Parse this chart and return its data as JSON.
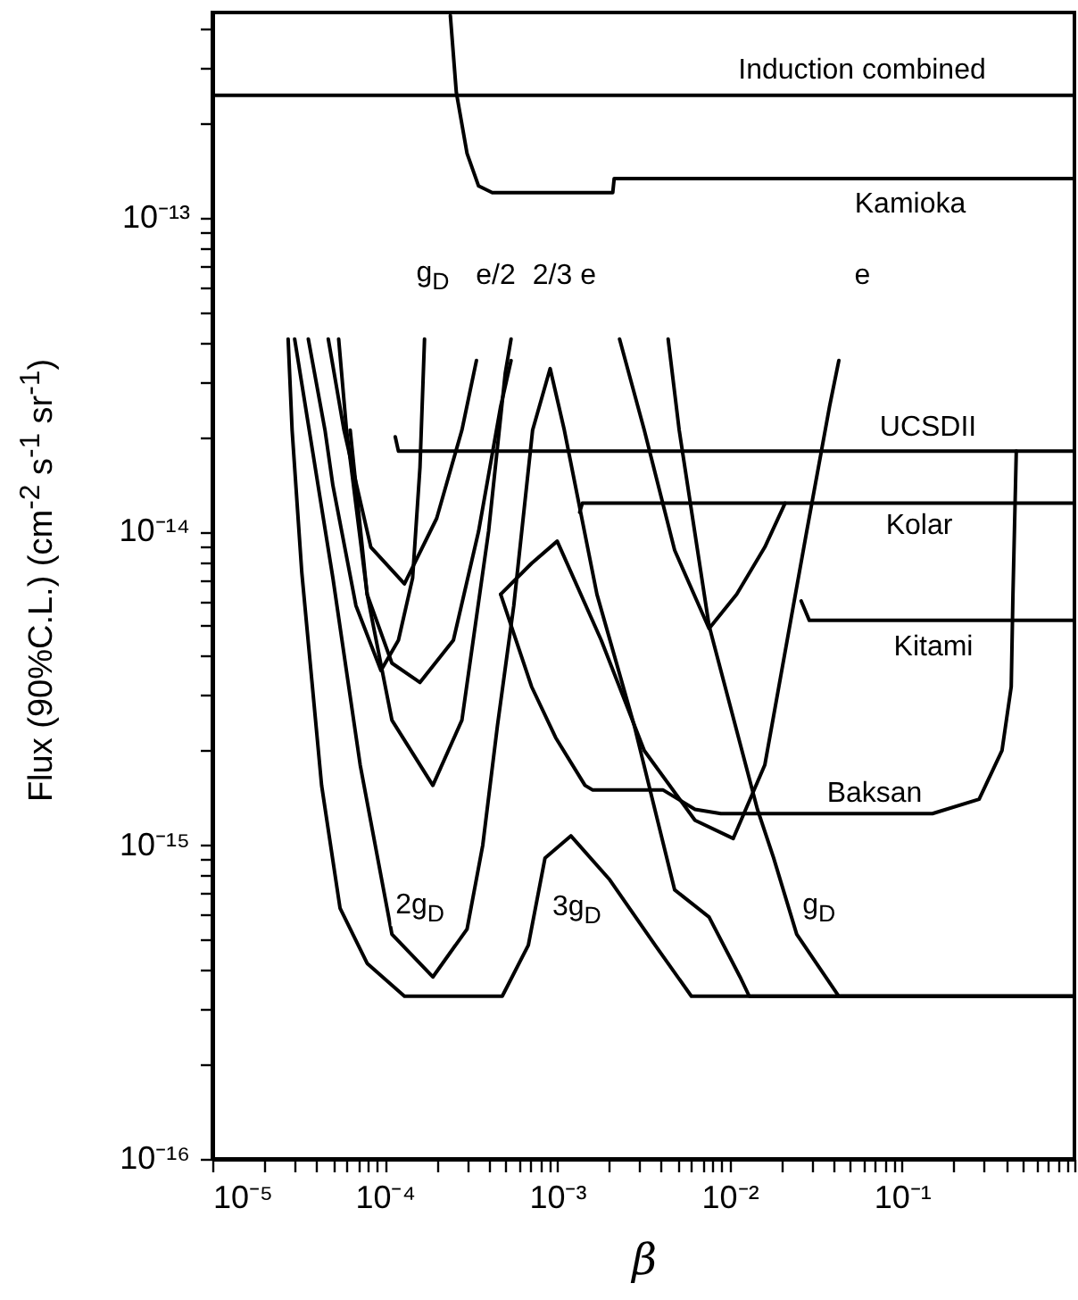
{
  "chart_data": {
    "type": "line",
    "xlabel": "β",
    "ylabel": "Flux (90%C.L.)   (cm$^{-2}$ s$^{-1}$ sr$^{-1}$)",
    "log": "xy",
    "xlim": [
      1e-05,
      1
    ],
    "ylim": [
      1e-16,
      4.5e-13
    ],
    "xticks": [
      {
        "value": 1e-05,
        "label": "10⁻⁵"
      },
      {
        "value": 2e-05,
        "label": null
      },
      {
        "value": 3e-05,
        "label": null
      },
      {
        "value": 4e-05,
        "label": null
      },
      {
        "value": 5e-05,
        "label": null
      },
      {
        "value": 6e-05,
        "label": null
      },
      {
        "value": 7e-05,
        "label": null
      },
      {
        "value": 8e-05,
        "label": null
      },
      {
        "value": 9e-05,
        "label": null
      },
      {
        "value": 0.0001,
        "label": "10⁻⁴"
      },
      {
        "value": 0.0002,
        "label": null
      },
      {
        "value": 0.0003,
        "label": null
      },
      {
        "value": 0.0004,
        "label": null
      },
      {
        "value": 0.0005,
        "label": null
      },
      {
        "value": 0.0006,
        "label": null
      },
      {
        "value": 0.0007,
        "label": null
      },
      {
        "value": 0.0008,
        "label": null
      },
      {
        "value": 0.0009,
        "label": null
      },
      {
        "value": 0.001,
        "label": "10⁻³"
      },
      {
        "value": 0.002,
        "label": null
      },
      {
        "value": 0.003,
        "label": null
      },
      {
        "value": 0.004,
        "label": null
      },
      {
        "value": 0.005,
        "label": null
      },
      {
        "value": 0.006,
        "label": null
      },
      {
        "value": 0.007,
        "label": null
      },
      {
        "value": 0.008,
        "label": null
      },
      {
        "value": 0.009,
        "label": null
      },
      {
        "value": 0.01,
        "label": "10⁻²"
      },
      {
        "value": 0.02,
        "label": null
      },
      {
        "value": 0.03,
        "label": null
      },
      {
        "value": 0.04,
        "label": null
      },
      {
        "value": 0.05,
        "label": null
      },
      {
        "value": 0.06,
        "label": null
      },
      {
        "value": 0.07,
        "label": null
      },
      {
        "value": 0.08,
        "label": null
      },
      {
        "value": 0.09,
        "label": null
      },
      {
        "value": 0.1,
        "label": "10⁻¹"
      },
      {
        "value": 0.2,
        "label": null
      },
      {
        "value": 0.3,
        "label": null
      },
      {
        "value": 0.4,
        "label": null
      },
      {
        "value": 0.5,
        "label": null
      },
      {
        "value": 0.6,
        "label": null
      },
      {
        "value": 0.7,
        "label": null
      },
      {
        "value": 0.8,
        "label": null
      },
      {
        "value": 0.9,
        "label": null
      },
      {
        "value": 1,
        "label": null
      }
    ],
    "yticks": [
      {
        "value": 1e-16,
        "label": "10⁻¹⁶"
      },
      {
        "value": 2e-16,
        "label": null
      },
      {
        "value": 3e-16,
        "label": null
      },
      {
        "value": 4e-16,
        "label": null
      },
      {
        "value": 5e-16,
        "label": null
      },
      {
        "value": 6e-16,
        "label": null
      },
      {
        "value": 7e-16,
        "label": null
      },
      {
        "value": 8e-16,
        "label": null
      },
      {
        "value": 9e-16,
        "label": null
      },
      {
        "value": 1e-15,
        "label": "10⁻¹⁵"
      },
      {
        "value": 2e-15,
        "label": null
      },
      {
        "value": 3e-15,
        "label": null
      },
      {
        "value": 4e-15,
        "label": null
      },
      {
        "value": 5e-15,
        "label": null
      },
      {
        "value": 6e-15,
        "label": null
      },
      {
        "value": 7e-15,
        "label": null
      },
      {
        "value": 8e-15,
        "label": null
      },
      {
        "value": 9e-15,
        "label": null
      },
      {
        "value": 1e-14,
        "label": "10⁻¹⁴"
      },
      {
        "value": 2e-14,
        "label": null
      },
      {
        "value": 3e-14,
        "label": null
      },
      {
        "value": 4e-14,
        "label": null
      },
      {
        "value": 5e-14,
        "label": null
      },
      {
        "value": 6e-14,
        "label": null
      },
      {
        "value": 7e-14,
        "label": null
      },
      {
        "value": 8e-14,
        "label": null
      },
      {
        "value": 9e-14,
        "label": null
      },
      {
        "value": 1e-13,
        "label": "10⁻¹³"
      },
      {
        "value": 2e-13,
        "label": null
      },
      {
        "value": 3e-13,
        "label": null
      },
      {
        "value": 4e-13,
        "label": null
      }
    ],
    "series": [
      {
        "color": "#000000",
        "x": [
          2.75e-05,
          2.9e-05,
          3.3e-05,
          4.3e-05,
          5.5e-05,
          7.9e-05,
          0.00013,
          0.00048,
          0.00068,
          0.00085,
          0.0012,
          0.002,
          0.0037,
          0.006,
          1
        ],
        "values": [
          4.1e-14,
          2.1e-14,
          7.4e-15,
          1.55e-15,
          6.3e-16,
          4.2e-16,
          3.3e-16,
          3.3e-16,
          4.8e-16,
          9.1e-16,
          1.07e-15,
          7.8e-16,
          4.8e-16,
          3.3e-16,
          3.3e-16
        ]
      },
      {
        "color": "#000000",
        "x": [
          3e-05,
          5e-05,
          7.2e-05,
          0.00011,
          0.00019,
          0.0003,
          0.00037,
          0.00045,
          0.00056,
          0.00072,
          0.00091,
          0.0011,
          0.0017,
          0.0028,
          0.0048,
          0.0076,
          0.0115,
          0.013,
          1
        ],
        "values": [
          4.1e-14,
          7.1e-15,
          1.8e-15,
          5.2e-16,
          3.8e-16,
          5.4e-16,
          1e-15,
          2.4e-15,
          5.8e-15,
          2.1e-14,
          3.3e-14,
          2.1e-14,
          6.3e-15,
          2.4e-15,
          7.2e-16,
          5.9e-16,
          3.8e-16,
          3.3e-16,
          3.3e-16
        ]
      },
      {
        "color": "#000000",
        "x": [
          3.6e-05,
          4.5e-05,
          5e-05,
          6.8e-05,
          9.5e-05,
          0.00012,
          0.000145,
          0.00016,
          0.00017,
          0.001,
          0.0044,
          0.0051,
          0.0076,
          0.0145,
          0.018,
          0.0245,
          0.043,
          1
        ],
        "values": [
          4.1e-14,
          2.1e-14,
          1.4e-14,
          5.8e-15,
          3.6e-15,
          4.5e-15,
          7.1e-15,
          1.6e-14,
          4.1e-14,
          null,
          4.1e-14,
          2.1e-14,
          5e-15,
          1.3e-15,
          9.1e-16,
          5.2e-16,
          3.3e-16,
          3.3e-16
        ]
      },
      {
        "color": "#000000",
        "x": [
          5.4e-05,
          6e-05,
          7.9e-05,
          0.00011,
          0.00016,
          0.00025,
          0.00035,
          0.00047,
          0.00054
        ],
        "values": [
          4.1e-14,
          2.1e-14,
          6.3e-15,
          3.8e-15,
          3.3e-15,
          4.5e-15,
          1e-14,
          2.5e-14,
          3.5e-14
        ]
      },
      {
        "color": "#000000",
        "x": [
          4.7e-05,
          5.8e-05,
          8.3e-05,
          0.00013,
          0.0002,
          0.00028,
          0.00034
        ],
        "values": [
          4.1e-14,
          2.1e-14,
          8.9e-15,
          6.8e-15,
          1.1e-14,
          2.1e-14,
          3.5e-14
        ]
      },
      {
        "color": "#000000",
        "x": [
          6.3e-05,
          7.9e-05,
          0.00011,
          0.00019,
          0.00028,
          0.0004,
          0.0005,
          0.00054
        ],
        "values": [
          2.1e-14,
          6.3e-15,
          2.5e-15,
          1.55e-15,
          2.5e-15,
          1e-14,
          3.2e-14,
          4.1e-14
        ]
      },
      {
        "color": "#000000",
        "x": [
          0.00047,
          0.00071,
          0.001,
          0.0018,
          0.0032,
          0.0063,
          0.0105,
          0.016,
          0.028,
          0.038,
          0.043
        ],
        "values": [
          6.3e-15,
          7.9e-15,
          9.3e-15,
          4.5e-15,
          2e-15,
          1.2e-15,
          1.05e-15,
          1.8e-15,
          1e-14,
          2.5e-14,
          3.5e-14
        ]
      },
      {
        "color": "#000000",
        "x": [
          0.00047,
          0.00071,
          0.00098,
          0.00145,
          0.0016,
          0.0041,
          0.0063,
          0.0089,
          0.15,
          0.28,
          0.38,
          0.43,
          0.44,
          0.46
        ],
        "values": [
          6.3e-15,
          3.2e-15,
          2.2e-15,
          1.55e-15,
          1.5e-15,
          1.5e-15,
          1.3e-15,
          1.26e-15,
          1.26e-15,
          1.4e-15,
          2e-15,
          3.2e-15,
          6.3e-15,
          1.8e-14
        ]
      },
      {
        "color": "#000000",
        "x": [
          0.0023,
          0.0032,
          0.0048,
          0.0076,
          0.011,
          0.016,
          0.021
        ],
        "values": [
          4.1e-14,
          2.1e-14,
          8.7e-15,
          4.9e-15,
          6.3e-15,
          8.9e-15,
          1.23e-14
        ]
      },
      {
        "color": "#000000",
        "x": [
          0.00135,
          0.0014,
          1
        ],
        "values": [
          1.15e-14,
          1.23e-14,
          1.23e-14
        ]
      },
      {
        "color": "#000000",
        "x": [
          0.000115,
          0.00012,
          1
        ],
        "values": [
          2e-14,
          1.8e-14,
          1.8e-14
        ]
      },
      {
        "color": "#000000",
        "x": [
          0.026,
          0.029,
          1
        ],
        "values": [
          6e-15,
          5.2e-15,
          5.2e-15
        ]
      },
      {
        "color": "#000000",
        "x": [
          1e-05,
          1
        ],
        "values": [
          2.45e-13,
          2.45e-13
        ]
      },
      {
        "color": "#000000",
        "x": [
          0.00024,
          0.00026,
          0.0003,
          0.00035,
          0.00042,
          0.0021,
          0.00214,
          1
        ],
        "values": [
          4.4e-13,
          2.5e-13,
          1.6e-13,
          1.26e-13,
          1.2e-13,
          1.2e-13,
          1.33e-13,
          1.33e-13
        ]
      }
    ],
    "annotations": [
      "Induction combined",
      "Kamioka",
      "UCSDII",
      "Kolar",
      "Kitami",
      "Baksan",
      {
        "text": "g$_{D}$",
        "x": 0.00019,
        "y": 6.5e-14
      },
      {
        "text": "e/2",
        "x": 0.00044,
        "y": 6.5e-14
      },
      {
        "text": "2/3 e",
        "x": 0.0011,
        "y": 6.5e-14
      },
      {
        "text": "e",
        "x": 0.059,
        "y": 6.5e-14
      },
      {
        "text": "2g$_{D}$",
        "x": 0.00016,
        "y": 6.3e-16
      },
      {
        "text": "3g$_{D}$",
        "x": 0.0013,
        "y": 6.2e-16
      },
      {
        "text": "g$_{D}$",
        "x": 0.033,
        "y": 6.3e-16
      }
    ]
  }
}
